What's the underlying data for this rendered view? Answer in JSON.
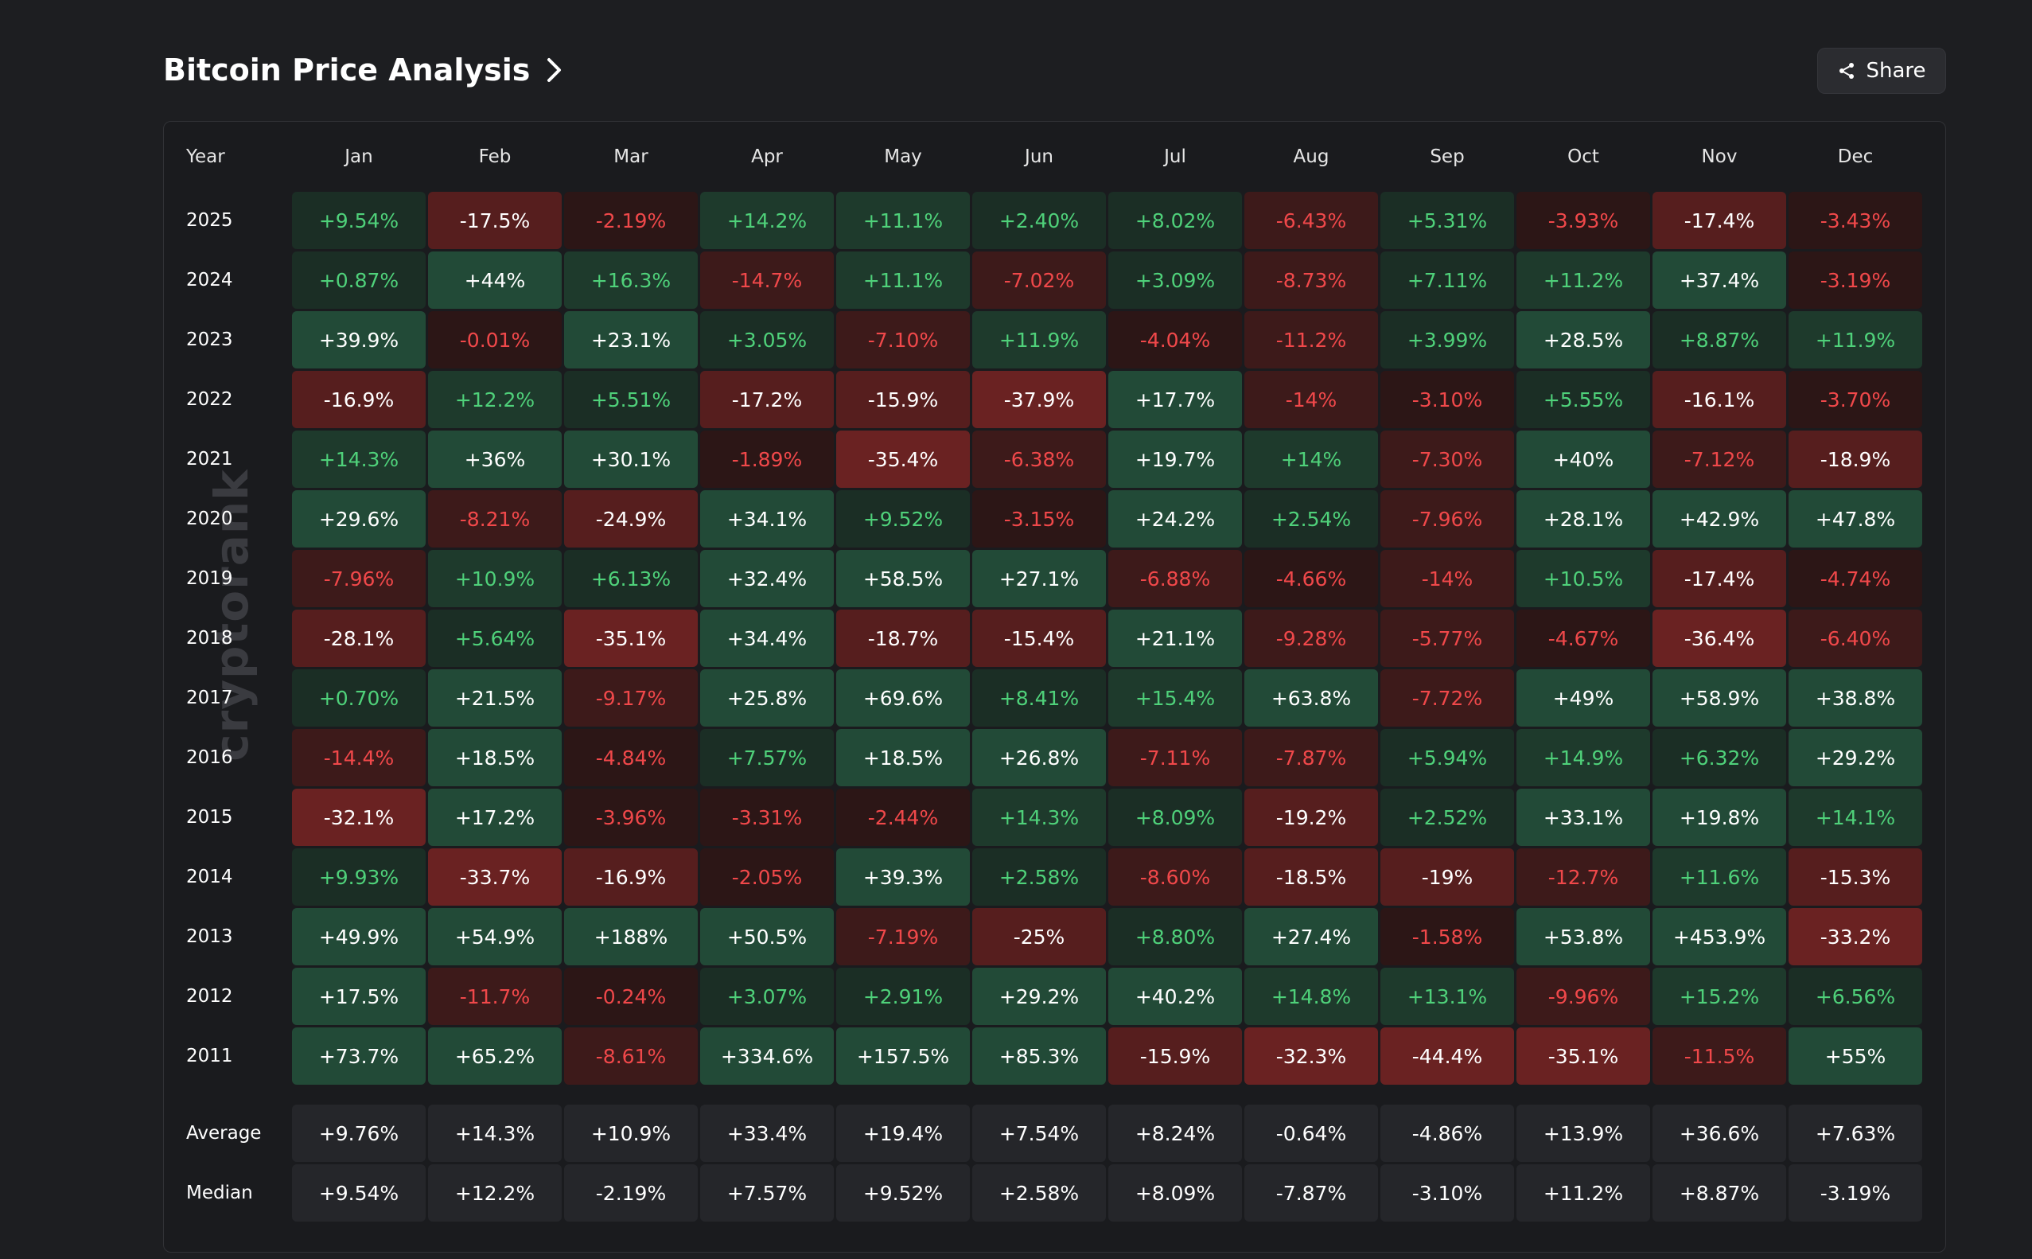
{
  "page": {
    "title": "Bitcoin Price Analysis",
    "share_label": "Share",
    "watermark": "cryptorank"
  },
  "table": {
    "year_header": "Year",
    "months": [
      "Jan",
      "Feb",
      "Mar",
      "Apr",
      "May",
      "Jun",
      "Jul",
      "Aug",
      "Sep",
      "Oct",
      "Nov",
      "Dec"
    ],
    "rows": [
      {
        "year": "2025",
        "values": [
          "+9.54%",
          "-17.5%",
          "-2.19%",
          "+14.2%",
          "+11.1%",
          "+2.40%",
          "+8.02%",
          "-6.43%",
          "+5.31%",
          "-3.93%",
          "-17.4%",
          "-3.43%"
        ]
      },
      {
        "year": "2024",
        "values": [
          "+0.87%",
          "+44%",
          "+16.3%",
          "-14.7%",
          "+11.1%",
          "-7.02%",
          "+3.09%",
          "-8.73%",
          "+7.11%",
          "+11.2%",
          "+37.4%",
          "-3.19%"
        ]
      },
      {
        "year": "2023",
        "values": [
          "+39.9%",
          "-0.01%",
          "+23.1%",
          "+3.05%",
          "-7.10%",
          "+11.9%",
          "-4.04%",
          "-11.2%",
          "+3.99%",
          "+28.5%",
          "+8.87%",
          "+11.9%"
        ]
      },
      {
        "year": "2022",
        "values": [
          "-16.9%",
          "+12.2%",
          "+5.51%",
          "-17.2%",
          "-15.9%",
          "-37.9%",
          "+17.7%",
          "-14%",
          "-3.10%",
          "+5.55%",
          "-16.1%",
          "-3.70%"
        ]
      },
      {
        "year": "2021",
        "values": [
          "+14.3%",
          "+36%",
          "+30.1%",
          "-1.89%",
          "-35.4%",
          "-6.38%",
          "+19.7%",
          "+14%",
          "-7.30%",
          "+40%",
          "-7.12%",
          "-18.9%"
        ]
      },
      {
        "year": "2020",
        "values": [
          "+29.6%",
          "-8.21%",
          "-24.9%",
          "+34.1%",
          "+9.52%",
          "-3.15%",
          "+24.2%",
          "+2.54%",
          "-7.96%",
          "+28.1%",
          "+42.9%",
          "+47.8%"
        ]
      },
      {
        "year": "2019",
        "values": [
          "-7.96%",
          "+10.9%",
          "+6.13%",
          "+32.4%",
          "+58.5%",
          "+27.1%",
          "-6.88%",
          "-4.66%",
          "-14%",
          "+10.5%",
          "-17.4%",
          "-4.74%"
        ]
      },
      {
        "year": "2018",
        "values": [
          "-28.1%",
          "+5.64%",
          "-35.1%",
          "+34.4%",
          "-18.7%",
          "-15.4%",
          "+21.1%",
          "-9.28%",
          "-5.77%",
          "-4.67%",
          "-36.4%",
          "-6.40%"
        ]
      },
      {
        "year": "2017",
        "values": [
          "+0.70%",
          "+21.5%",
          "-9.17%",
          "+25.8%",
          "+69.6%",
          "+8.41%",
          "+15.4%",
          "+63.8%",
          "-7.72%",
          "+49%",
          "+58.9%",
          "+38.8%"
        ]
      },
      {
        "year": "2016",
        "values": [
          "-14.4%",
          "+18.5%",
          "-4.84%",
          "+7.57%",
          "+18.5%",
          "+26.8%",
          "-7.11%",
          "-7.87%",
          "+5.94%",
          "+14.9%",
          "+6.32%",
          "+29.2%"
        ]
      },
      {
        "year": "2015",
        "values": [
          "-32.1%",
          "+17.2%",
          "-3.96%",
          "-3.31%",
          "-2.44%",
          "+14.3%",
          "+8.09%",
          "-19.2%",
          "+2.52%",
          "+33.1%",
          "+19.8%",
          "+14.1%"
        ]
      },
      {
        "year": "2014",
        "values": [
          "+9.93%",
          "-33.7%",
          "-16.9%",
          "-2.05%",
          "+39.3%",
          "+2.58%",
          "-8.60%",
          "-18.5%",
          "-19%",
          "-12.7%",
          "+11.6%",
          "-15.3%"
        ]
      },
      {
        "year": "2013",
        "values": [
          "+49.9%",
          "+54.9%",
          "+188%",
          "+50.5%",
          "-7.19%",
          "-25%",
          "+8.80%",
          "+27.4%",
          "-1.58%",
          "+53.8%",
          "+453.9%",
          "-33.2%"
        ]
      },
      {
        "year": "2012",
        "values": [
          "+17.5%",
          "-11.7%",
          "-0.24%",
          "+3.07%",
          "+2.91%",
          "+29.2%",
          "+40.2%",
          "+14.8%",
          "+13.1%",
          "-9.96%",
          "+15.2%",
          "+6.56%"
        ]
      },
      {
        "year": "2011",
        "values": [
          "+73.7%",
          "+65.2%",
          "-8.61%",
          "+334.6%",
          "+157.5%",
          "+85.3%",
          "-15.9%",
          "-32.3%",
          "-44.4%",
          "-35.1%",
          "-11.5%",
          "+55%"
        ]
      }
    ],
    "stats": [
      {
        "label": "Average",
        "values": [
          "+9.76%",
          "+14.3%",
          "+10.9%",
          "+33.4%",
          "+19.4%",
          "+7.54%",
          "+8.24%",
          "-0.64%",
          "-4.86%",
          "+13.9%",
          "+36.6%",
          "+7.63%"
        ]
      },
      {
        "label": "Median",
        "values": [
          "+9.54%",
          "+12.2%",
          "-2.19%",
          "+7.57%",
          "+9.52%",
          "+2.58%",
          "+8.09%",
          "-7.87%",
          "-3.10%",
          "+11.2%",
          "+8.87%",
          "-3.19%"
        ]
      }
    ]
  },
  "colors": {
    "page_bg": "#1d1e21",
    "green_text": "#4fd17a",
    "red_text": "#f0484a",
    "strong_text": "#ffffff",
    "green_bg": [
      "#1b2e25",
      "#1e3a2c",
      "#224a37"
    ],
    "red_bg": [
      "#2c1616",
      "#3d1a1a",
      "#561e1e",
      "#6a2222"
    ]
  }
}
